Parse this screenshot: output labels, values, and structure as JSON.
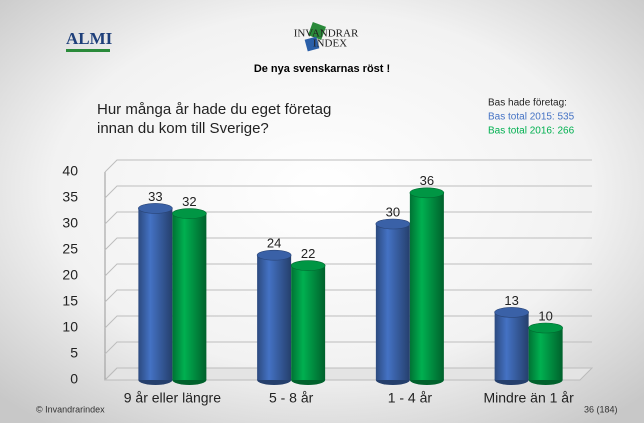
{
  "slide": {
    "logo": "ALMI",
    "brand_top": "INVANDRAR",
    "brand_bottom": "INDEX",
    "heading": "De nya svenskarnas röst !",
    "copyright": "© Invandrarindex",
    "page": "36 (184)"
  },
  "chart_data": {
    "type": "bar",
    "title": "Hur många år hade du eget företag innan du kom till Sverige?",
    "legend_title": "Bas hade företag:",
    "categories": [
      "9 år eller längre",
      "5 - 8 år",
      "1 - 4 år",
      "Mindre än 1 år"
    ],
    "series": [
      {
        "name": "Bas total 2015: 535",
        "color": "#4472c4",
        "values": [
          33,
          24,
          30,
          13
        ]
      },
      {
        "name": "Bas total 2016: 266",
        "color": "#00b050",
        "values": [
          32,
          22,
          36,
          10
        ]
      }
    ],
    "ylim": [
      0,
      40
    ],
    "yticks": [
      0,
      5,
      10,
      15,
      20,
      25,
      30,
      35,
      40
    ],
    "grid": true,
    "legend": "top-right"
  }
}
